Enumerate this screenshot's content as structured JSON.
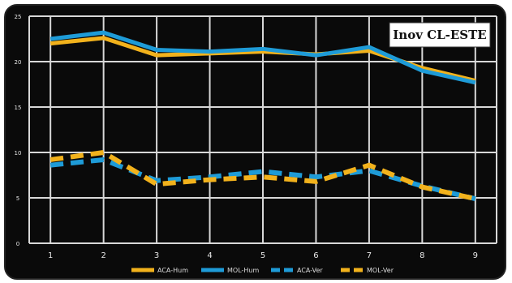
{
  "chart_data": {
    "type": "line",
    "title": "Inov CL-ESTE",
    "x": [
      1,
      2,
      3,
      4,
      5,
      6,
      7,
      8,
      9
    ],
    "xlabel": "",
    "ylabel": "",
    "xlim": [
      0.6,
      9.4
    ],
    "ylim": [
      0,
      25
    ],
    "yticks": [
      0,
      5,
      10,
      15,
      20,
      25
    ],
    "xticks": [
      1,
      2,
      3,
      4,
      5,
      6,
      7,
      8,
      9
    ],
    "grid": true,
    "legend_position": "bottom",
    "series": [
      {
        "name": "ACA-Hum",
        "color": "#f2b21c",
        "style": "solid",
        "values": [
          22.0,
          22.6,
          20.7,
          20.9,
          21.1,
          20.8,
          21.2,
          19.3,
          17.9
        ]
      },
      {
        "name": "MOL-Hum",
        "color": "#1e9bd7",
        "style": "solid",
        "values": [
          22.5,
          23.2,
          21.3,
          21.1,
          21.4,
          20.7,
          21.6,
          19.0,
          17.7
        ]
      },
      {
        "name": "ACA-Ver",
        "color": "#1e9bd7",
        "style": "dashed",
        "values": [
          8.6,
          9.2,
          6.9,
          7.3,
          7.9,
          7.3,
          8.0,
          6.3,
          4.9
        ]
      },
      {
        "name": "MOL-Ver",
        "color": "#f2b21c",
        "style": "dashed",
        "values": [
          9.2,
          10.0,
          6.5,
          7.0,
          7.3,
          6.8,
          8.6,
          6.2,
          4.9
        ]
      }
    ]
  }
}
